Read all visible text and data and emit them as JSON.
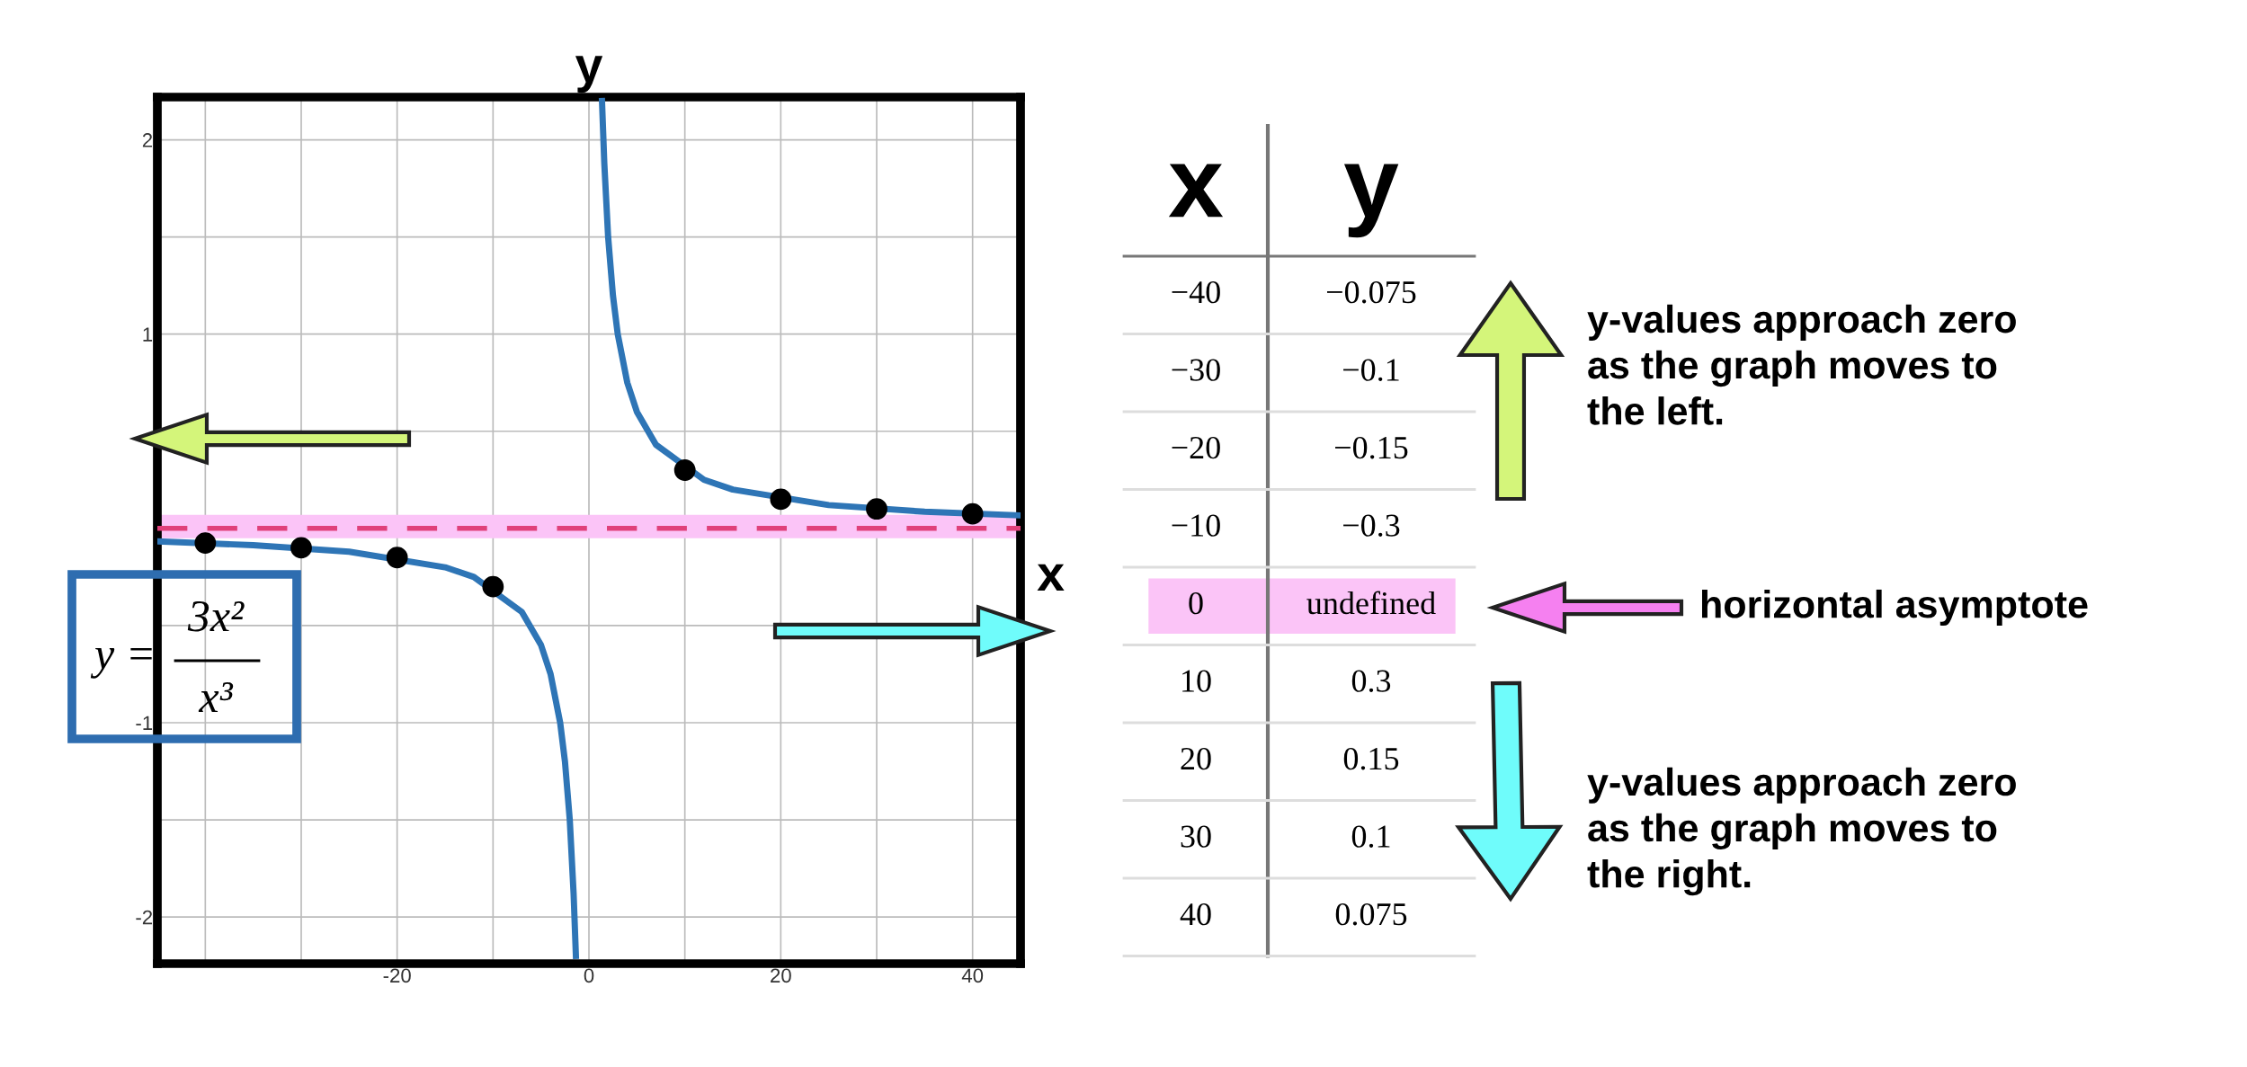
{
  "chart_data": {
    "type": "line",
    "xlabel": "x",
    "ylabel": "y",
    "xlim": [
      -45,
      45
    ],
    "ylim": [
      -2.24,
      2.22
    ],
    "xticks": [
      {
        "value": -40,
        "label": null
      },
      {
        "value": -30,
        "label": null
      },
      -20,
      {
        "value": -10,
        "label": null
      },
      0,
      {
        "value": 10,
        "label": null
      },
      20,
      {
        "value": 30,
        "label": null
      },
      40
    ],
    "yticks": [
      -2,
      {
        "value": -1.5,
        "label": null
      },
      -1,
      {
        "value": -0.5,
        "label": null
      },
      {
        "value": 0,
        "label": null
      },
      {
        "value": 0.5,
        "label": null
      },
      1,
      {
        "value": 1.5,
        "label": null
      },
      2
    ],
    "grid": true,
    "legend": false,
    "series": [
      {
        "color": "#2e75b6",
        "x": [
          -45,
          -35,
          -25,
          -15,
          -12,
          -7,
          -5,
          -4,
          -3,
          -2.5,
          -2,
          -1.6,
          -1.36,
          0,
          1.36,
          1.6,
          2,
          2.5,
          3,
          4,
          5,
          7,
          12,
          15,
          25,
          35,
          45
        ],
        "values": [
          -0.067,
          -0.086,
          -0.12,
          -0.2,
          -0.25,
          -0.43,
          -0.6,
          -0.75,
          -1,
          -1.2,
          -1.5,
          -1.88,
          -2.2,
          null,
          2.2,
          1.88,
          1.5,
          1.2,
          1,
          0.75,
          0.6,
          0.43,
          0.25,
          0.2,
          0.12,
          0.086,
          0.067
        ]
      },
      {
        "type": "scatter",
        "color": "#000000",
        "marker": "circle",
        "x": [
          -40,
          -30,
          -20,
          -10,
          10,
          20,
          30,
          40
        ],
        "values": [
          -0.075,
          -0.1,
          -0.15,
          -0.3,
          0.3,
          0.15,
          0.1,
          0.075
        ]
      }
    ],
    "ref_lines": [
      {
        "axis": "y",
        "value": 0,
        "color": "#e0407a",
        "line_style": "dashed"
      }
    ],
    "bands": [
      {
        "axis": "y",
        "from": -0.05,
        "to": 0.07,
        "color": "#fbc4f7"
      }
    ],
    "annotations": [
      "y-values approach zero\nas the graph moves to\nthe left.",
      "horizontal asymptote",
      "y-values approach zero\nas the graph moves to\nthe right.",
      "y =",
      "3x²",
      "x³",
      "−40",
      "−0.075",
      "−30",
      "−0.1",
      "−20",
      "−0.15",
      "−10",
      "−0.3",
      "0",
      "undefined",
      "10",
      "0.3",
      "20",
      "0.15",
      "30",
      "0.1",
      "40",
      "0.075"
    ]
  }
}
